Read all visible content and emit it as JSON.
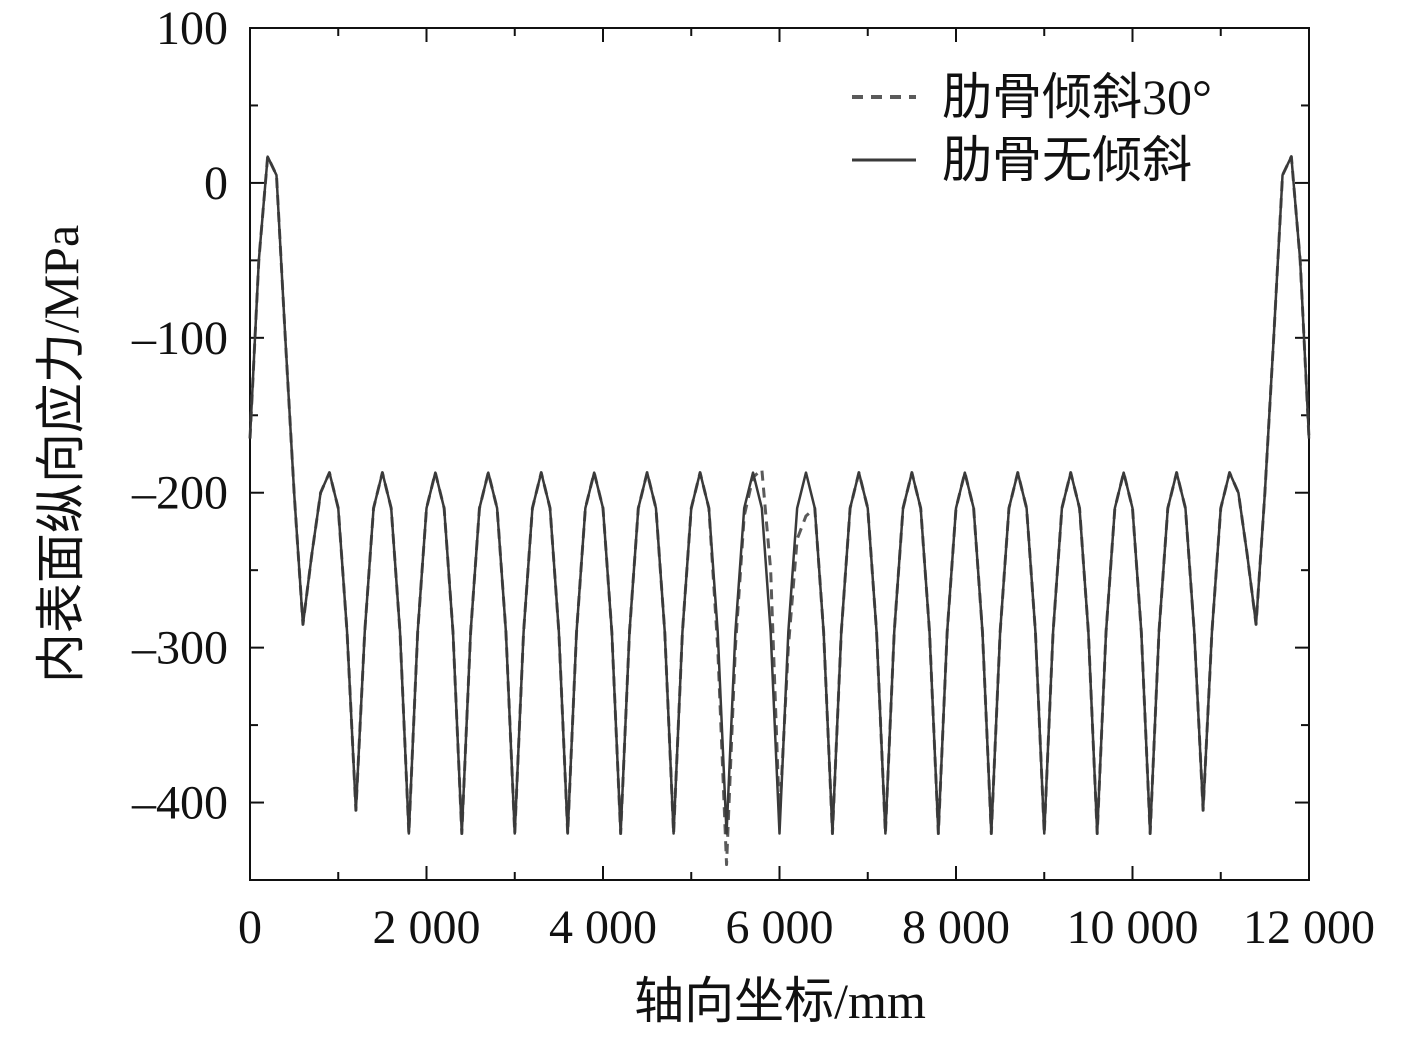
{
  "chart_data": {
    "type": "line",
    "xlabel": "轴向坐标/mm",
    "ylabel": "内表面纵向应力/MPa",
    "x": [
      0,
      100,
      200,
      300,
      400,
      500,
      600,
      700,
      800,
      900,
      1000,
      1100,
      1200,
      1300,
      1400,
      1500,
      1600,
      1700,
      1800,
      1900,
      2000,
      2100,
      2200,
      2300,
      2400,
      2500,
      2600,
      2700,
      2800,
      2900,
      3000,
      3100,
      3200,
      3300,
      3400,
      3500,
      3600,
      3700,
      3800,
      3900,
      4000,
      4100,
      4200,
      4300,
      4400,
      4500,
      4600,
      4700,
      4800,
      4900,
      5000,
      5100,
      5200,
      5300,
      5400,
      5500,
      5600,
      5700,
      5800,
      5900,
      6000,
      6100,
      6200,
      6300,
      6400,
      6500,
      6600,
      6700,
      6800,
      6900,
      7000,
      7100,
      7200,
      7300,
      7400,
      7500,
      7600,
      7700,
      7800,
      7900,
      8000,
      8100,
      8200,
      8300,
      8400,
      8500,
      8600,
      8700,
      8800,
      8900,
      9000,
      9100,
      9200,
      9300,
      9400,
      9500,
      9600,
      9700,
      9800,
      9900,
      10000,
      10100,
      10200,
      10300,
      10400,
      10500,
      10600,
      10700,
      10800,
      10900,
      11000,
      11100,
      11200,
      11300,
      11400,
      11500,
      11600,
      11700,
      11800,
      11900,
      12000
    ],
    "series": [
      {
        "name": "肋骨倾斜30°",
        "color": "#5a5a5a",
        "dash": true,
        "values": [
          -165,
          -50,
          17,
          5,
          -100,
          -200,
          -285,
          -240,
          -200,
          -187,
          -210,
          -290,
          -405,
          -290,
          -210,
          -187,
          -210,
          -290,
          -420,
          -290,
          -210,
          -187,
          -210,
          -290,
          -420,
          -290,
          -210,
          -187,
          -210,
          -290,
          -420,
          -290,
          -210,
          -187,
          -210,
          -290,
          -420,
          -290,
          -210,
          -187,
          -210,
          -290,
          -420,
          -290,
          -210,
          -187,
          -210,
          -290,
          -420,
          -290,
          -210,
          -187,
          -210,
          -300,
          -440,
          -300,
          -215,
          -190,
          -185,
          -250,
          -410,
          -300,
          -230,
          -215,
          -210,
          -290,
          -420,
          -290,
          -210,
          -187,
          -210,
          -290,
          -420,
          -290,
          -210,
          -187,
          -210,
          -290,
          -420,
          -290,
          -210,
          -187,
          -210,
          -290,
          -420,
          -290,
          -210,
          -187,
          -210,
          -290,
          -420,
          -290,
          -210,
          -187,
          -210,
          -290,
          -420,
          -290,
          -210,
          -187,
          -210,
          -290,
          -420,
          -290,
          -210,
          -187,
          -210,
          -290,
          -405,
          -290,
          -210,
          -187,
          -200,
          -240,
          -285,
          -200,
          -100,
          5,
          17,
          -50,
          -165
        ]
      },
      {
        "name": "肋骨无倾斜",
        "color": "#3a3a3a",
        "dash": false,
        "values": [
          -165,
          -50,
          17,
          5,
          -100,
          -200,
          -285,
          -240,
          -200,
          -187,
          -210,
          -290,
          -405,
          -290,
          -210,
          -187,
          -210,
          -290,
          -420,
          -290,
          -210,
          -187,
          -210,
          -290,
          -420,
          -290,
          -210,
          -187,
          -210,
          -290,
          -420,
          -290,
          -210,
          -187,
          -210,
          -290,
          -420,
          -290,
          -210,
          -187,
          -210,
          -290,
          -420,
          -290,
          -210,
          -187,
          -210,
          -290,
          -420,
          -290,
          -210,
          -187,
          -210,
          -290,
          -420,
          -290,
          -210,
          -187,
          -210,
          -290,
          -420,
          -290,
          -210,
          -187,
          -210,
          -290,
          -420,
          -290,
          -210,
          -187,
          -210,
          -290,
          -420,
          -290,
          -210,
          -187,
          -210,
          -290,
          -420,
          -290,
          -210,
          -187,
          -210,
          -290,
          -420,
          -290,
          -210,
          -187,
          -210,
          -290,
          -420,
          -290,
          -210,
          -187,
          -210,
          -290,
          -420,
          -290,
          -210,
          -187,
          -210,
          -290,
          -420,
          -290,
          -210,
          -187,
          -210,
          -290,
          -405,
          -290,
          -210,
          -187,
          -200,
          -240,
          -285,
          -200,
          -100,
          5,
          17,
          -50,
          -165
        ]
      }
    ],
    "xlim": [
      0,
      12000
    ],
    "ylim": [
      -450,
      100
    ],
    "xticks": [
      0,
      {
        "value": 2000,
        "label": "2 000"
      },
      {
        "value": 4000,
        "label": "4 000"
      },
      {
        "value": 6000,
        "label": "6 000"
      },
      {
        "value": 8000,
        "label": "8 000"
      },
      {
        "value": 10000,
        "label": "10 000"
      },
      {
        "value": 12000,
        "label": "12 000"
      }
    ],
    "yticks": [
      100,
      0,
      {
        "value": -100,
        "label": "–100"
      },
      {
        "value": -200,
        "label": "–200"
      },
      {
        "value": -300,
        "label": "–300"
      },
      {
        "value": -400,
        "label": "–400"
      }
    ],
    "xticks_minor": [
      1000,
      3000,
      5000,
      7000,
      9000,
      11000
    ],
    "yticks_minor": [
      50,
      -50,
      -150,
      -250,
      -350
    ],
    "legend": "upper right",
    "grid": false
  }
}
